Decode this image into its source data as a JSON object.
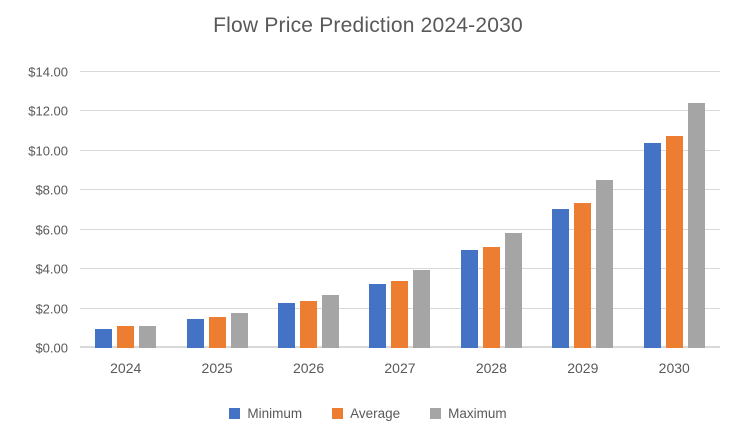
{
  "chart_data": {
    "type": "bar",
    "title": "Flow Price Prediction 2024-2030",
    "categories": [
      "2024",
      "2025",
      "2026",
      "2027",
      "2028",
      "2029",
      "2030"
    ],
    "series": [
      {
        "name": "Minimum",
        "color": "#4472C4",
        "values": [
          0.95,
          1.45,
          2.3,
          3.25,
          4.95,
          7.05,
          10.4
        ]
      },
      {
        "name": "Average",
        "color": "#ED7D31",
        "values": [
          1.1,
          1.55,
          2.4,
          3.4,
          5.1,
          7.35,
          10.75
        ]
      },
      {
        "name": "Maximum",
        "color": "#A5A5A5",
        "values": [
          1.1,
          1.8,
          2.7,
          3.95,
          5.85,
          8.5,
          12.45
        ]
      }
    ],
    "ylim": [
      0,
      14
    ],
    "ytick_step": 2,
    "ytick_labels": [
      "$0.00",
      "$2.00",
      "$4.00",
      "$6.00",
      "$8.00",
      "$10.00",
      "$12.00",
      "$14.00"
    ],
    "xlabel": "",
    "ylabel": "",
    "grid": true,
    "legend_position": "bottom",
    "gridline_color": "#D9D9D9",
    "text_color": "#595959",
    "background_color": "#FFFFFF"
  }
}
